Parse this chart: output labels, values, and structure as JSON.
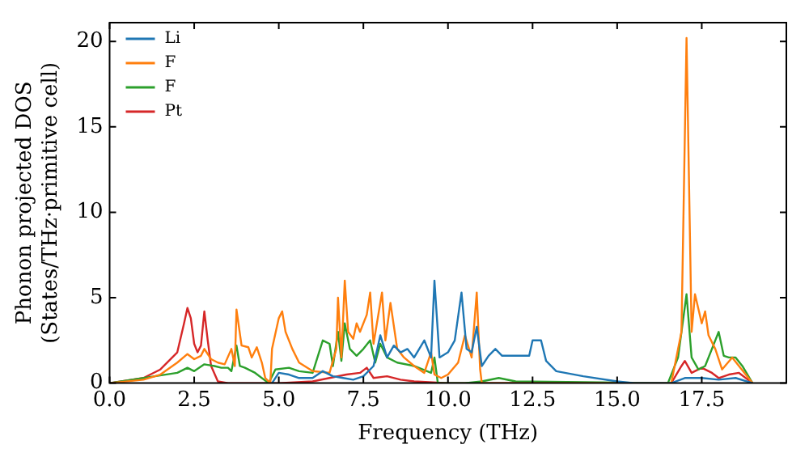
{
  "chart_data": {
    "type": "line",
    "xlabel": "Frequency (THz)",
    "ylabel": "Phonon projected DOS\n(States/THz·primitive cell)",
    "xlim": [
      0,
      20
    ],
    "xticks": [
      {
        "value": 0,
        "label": "0.0"
      },
      2.5,
      {
        "value": 5,
        "label": "5.0"
      },
      7.5,
      {
        "value": 10,
        "label": "10.0"
      },
      12.5,
      {
        "value": 15,
        "label": "15.0"
      },
      17.5
    ],
    "ylim": [
      0,
      21.1
    ],
    "yticks": [
      0,
      5,
      10,
      15,
      20
    ],
    "grid": false,
    "legend": "top left",
    "marker": "none",
    "line_style": "solid",
    "series": [
      {
        "name": "Li",
        "color": "#1f77b4",
        "x": [
          4.8,
          5.0,
          5.3,
          5.6,
          6.0,
          6.3,
          6.6,
          6.9,
          7.2,
          7.5,
          7.8,
          8.0,
          8.2,
          8.4,
          8.6,
          8.8,
          9.0,
          9.3,
          9.5,
          9.6,
          9.75,
          10.0,
          10.2,
          10.4,
          10.55,
          10.7,
          10.85,
          11.0,
          11.2,
          11.4,
          11.6,
          12.0,
          12.4,
          12.5,
          12.75,
          12.9,
          13.2,
          14,
          15,
          15.5,
          16.6,
          17.0,
          17.5,
          18,
          18.5,
          19
        ],
        "values": [
          0,
          0.6,
          0.5,
          0.3,
          0.3,
          0.7,
          0.4,
          0.3,
          0.2,
          0.4,
          1.0,
          2.8,
          1.5,
          2.2,
          1.8,
          2.0,
          1.5,
          2.5,
          1.5,
          6.0,
          1.5,
          1.8,
          2.5,
          5.3,
          2.0,
          1.8,
          3.3,
          1.0,
          1.6,
          2.0,
          1.6,
          1.6,
          1.6,
          2.5,
          2.5,
          1.3,
          0.7,
          0.4,
          0.1,
          0,
          0,
          0.3,
          0.3,
          0.2,
          0.3,
          0
        ]
      },
      {
        "name": "F",
        "color": "#ff7f0e",
        "x": [
          0,
          1,
          1.5,
          2,
          2.3,
          2.5,
          2.7,
          2.8,
          3.0,
          3.2,
          3.4,
          3.6,
          3.7,
          3.75,
          3.9,
          4.1,
          4.2,
          4.35,
          4.5,
          4.6,
          4.75,
          4.8,
          5.0,
          5.1,
          5.2,
          5.4,
          5.6,
          6.0,
          6.5,
          6.7,
          6.75,
          6.85,
          6.95,
          7.05,
          7.2,
          7.3,
          7.4,
          7.6,
          7.7,
          7.8,
          8.05,
          8.15,
          8.3,
          8.5,
          8.7,
          9.0,
          9.3,
          9.5,
          9.6,
          9.8,
          10,
          10.3,
          10.5,
          10.7,
          10.85,
          10.95,
          11,
          16.6,
          16.9,
          17.05,
          17.2,
          17.3,
          17.5,
          17.6,
          17.7,
          17.9,
          18.1,
          18.4,
          18.6,
          19
        ],
        "values": [
          0,
          0.2,
          0.5,
          1.2,
          1.7,
          1.4,
          1.6,
          2.0,
          1.4,
          1.2,
          1.1,
          2.0,
          1.0,
          4.3,
          2.2,
          2.1,
          1.5,
          2.1,
          1.2,
          0.3,
          0,
          2.0,
          3.8,
          4.2,
          3.0,
          2.0,
          1.2,
          0.7,
          0.6,
          2.0,
          5.0,
          1.5,
          6.0,
          3.0,
          2.6,
          3.5,
          3.0,
          4.0,
          5.3,
          2.3,
          5.3,
          2.5,
          4.7,
          2.0,
          1.5,
          1.0,
          0.6,
          1.8,
          0.5,
          0.3,
          0.5,
          1.2,
          2.8,
          1.5,
          5.3,
          0.8,
          0,
          0,
          3.0,
          20.2,
          3.0,
          5.2,
          3.5,
          4.2,
          2.8,
          2.0,
          0.8,
          1.5,
          1.0,
          0
        ]
      },
      {
        "name": "F",
        "color": "#2ca02c",
        "x": [
          0,
          2,
          2.3,
          2.5,
          2.8,
          3.1,
          3.3,
          3.5,
          3.6,
          3.75,
          3.85,
          4.0,
          4.3,
          4.7,
          4.9,
          5.3,
          5.6,
          6.0,
          6.3,
          6.5,
          6.6,
          6.75,
          6.85,
          6.95,
          7.1,
          7.3,
          7.5,
          7.7,
          7.85,
          8.0,
          8.2,
          8.5,
          9,
          9.5,
          9.6,
          9.7,
          10.5,
          11,
          11.5,
          12,
          16.5,
          16.8,
          17.05,
          17.2,
          17.4,
          17.6,
          17.8,
          18.0,
          18.15,
          18.3,
          18.5,
          18.7,
          19
        ],
        "values": [
          0,
          0.6,
          0.9,
          0.7,
          1.1,
          1.0,
          0.9,
          0.9,
          0.7,
          2.2,
          1.0,
          0.9,
          0.6,
          0,
          0.8,
          0.9,
          0.7,
          0.6,
          2.5,
          2.3,
          1.0,
          3.0,
          1.3,
          3.5,
          2.0,
          1.6,
          2.0,
          2.5,
          1.2,
          2.3,
          1.5,
          1.2,
          1.0,
          0.6,
          1.5,
          0,
          0,
          0.1,
          0.3,
          0.1,
          0,
          1.5,
          5.2,
          1.5,
          0.8,
          1.0,
          2.0,
          3.0,
          1.6,
          1.5,
          1.5,
          1.0,
          0
        ]
      },
      {
        "name": "Pt",
        "color": "#d62728",
        "x": [
          0,
          1,
          1.5,
          2,
          2.2,
          2.3,
          2.4,
          2.5,
          2.6,
          2.7,
          2.8,
          2.9,
          3.0,
          3.2,
          3.5,
          5,
          6,
          6.5,
          7,
          7.4,
          7.6,
          7.8,
          8.2,
          8.6,
          9,
          10,
          16.6,
          16.9,
          17.0,
          17.2,
          17.5,
          17.8,
          18,
          18.3,
          18.6,
          19
        ],
        "values": [
          0,
          0.3,
          0.8,
          1.8,
          3.5,
          4.4,
          3.8,
          2.3,
          1.8,
          2.2,
          4.2,
          2.5,
          1.0,
          0.1,
          0,
          0,
          0.1,
          0.3,
          0.5,
          0.6,
          0.9,
          0.3,
          0.4,
          0.2,
          0.1,
          0,
          0,
          1.0,
          1.3,
          0.6,
          0.9,
          0.6,
          0.3,
          0.5,
          0.6,
          0
        ]
      }
    ]
  }
}
